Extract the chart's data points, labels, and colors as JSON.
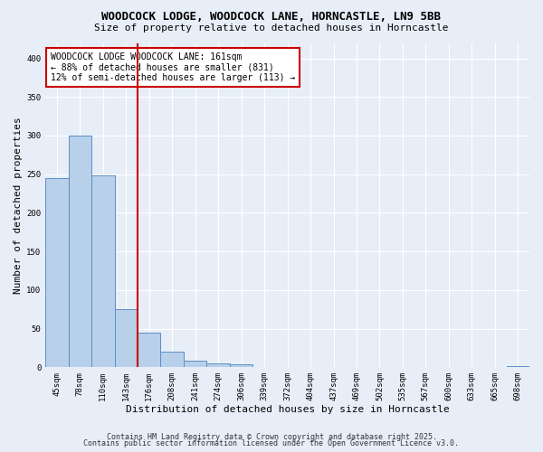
{
  "title_line1": "WOODCOCK LODGE, WOODCOCK LANE, HORNCASTLE, LN9 5BB",
  "title_line2": "Size of property relative to detached houses in Horncastle",
  "xlabel": "Distribution of detached houses by size in Horncastle",
  "ylabel": "Number of detached properties",
  "categories": [
    "45sqm",
    "78sqm",
    "110sqm",
    "143sqm",
    "176sqm",
    "208sqm",
    "241sqm",
    "274sqm",
    "306sqm",
    "339sqm",
    "372sqm",
    "404sqm",
    "437sqm",
    "469sqm",
    "502sqm",
    "535sqm",
    "567sqm",
    "600sqm",
    "633sqm",
    "665sqm",
    "698sqm"
  ],
  "values": [
    245,
    300,
    248,
    75,
    45,
    20,
    9,
    5,
    4,
    0,
    0,
    0,
    0,
    0,
    0,
    0,
    0,
    0,
    0,
    0,
    2
  ],
  "bar_color": "#b8d0ea",
  "bar_edge_color": "#5b8fc7",
  "red_line_x": 3.5,
  "annotation_text": "WOODCOCK LODGE WOODCOCK LANE: 161sqm\n← 88% of detached houses are smaller (831)\n12% of semi-detached houses are larger (113) →",
  "annotation_box_color": "#ffffff",
  "annotation_box_edge": "#cc0000",
  "red_line_color": "#cc0000",
  "ylim": [
    0,
    420
  ],
  "yticks": [
    0,
    50,
    100,
    150,
    200,
    250,
    300,
    350,
    400
  ],
  "background_color": "#e8eef8",
  "grid_color": "#ffffff",
  "footer_line1": "Contains HM Land Registry data © Crown copyright and database right 2025.",
  "footer_line2": "Contains public sector information licensed under the Open Government Licence v3.0.",
  "title_fontsize": 9,
  "subtitle_fontsize": 8,
  "axis_label_fontsize": 8,
  "tick_fontsize": 6.5,
  "annotation_fontsize": 7,
  "footer_fontsize": 6
}
